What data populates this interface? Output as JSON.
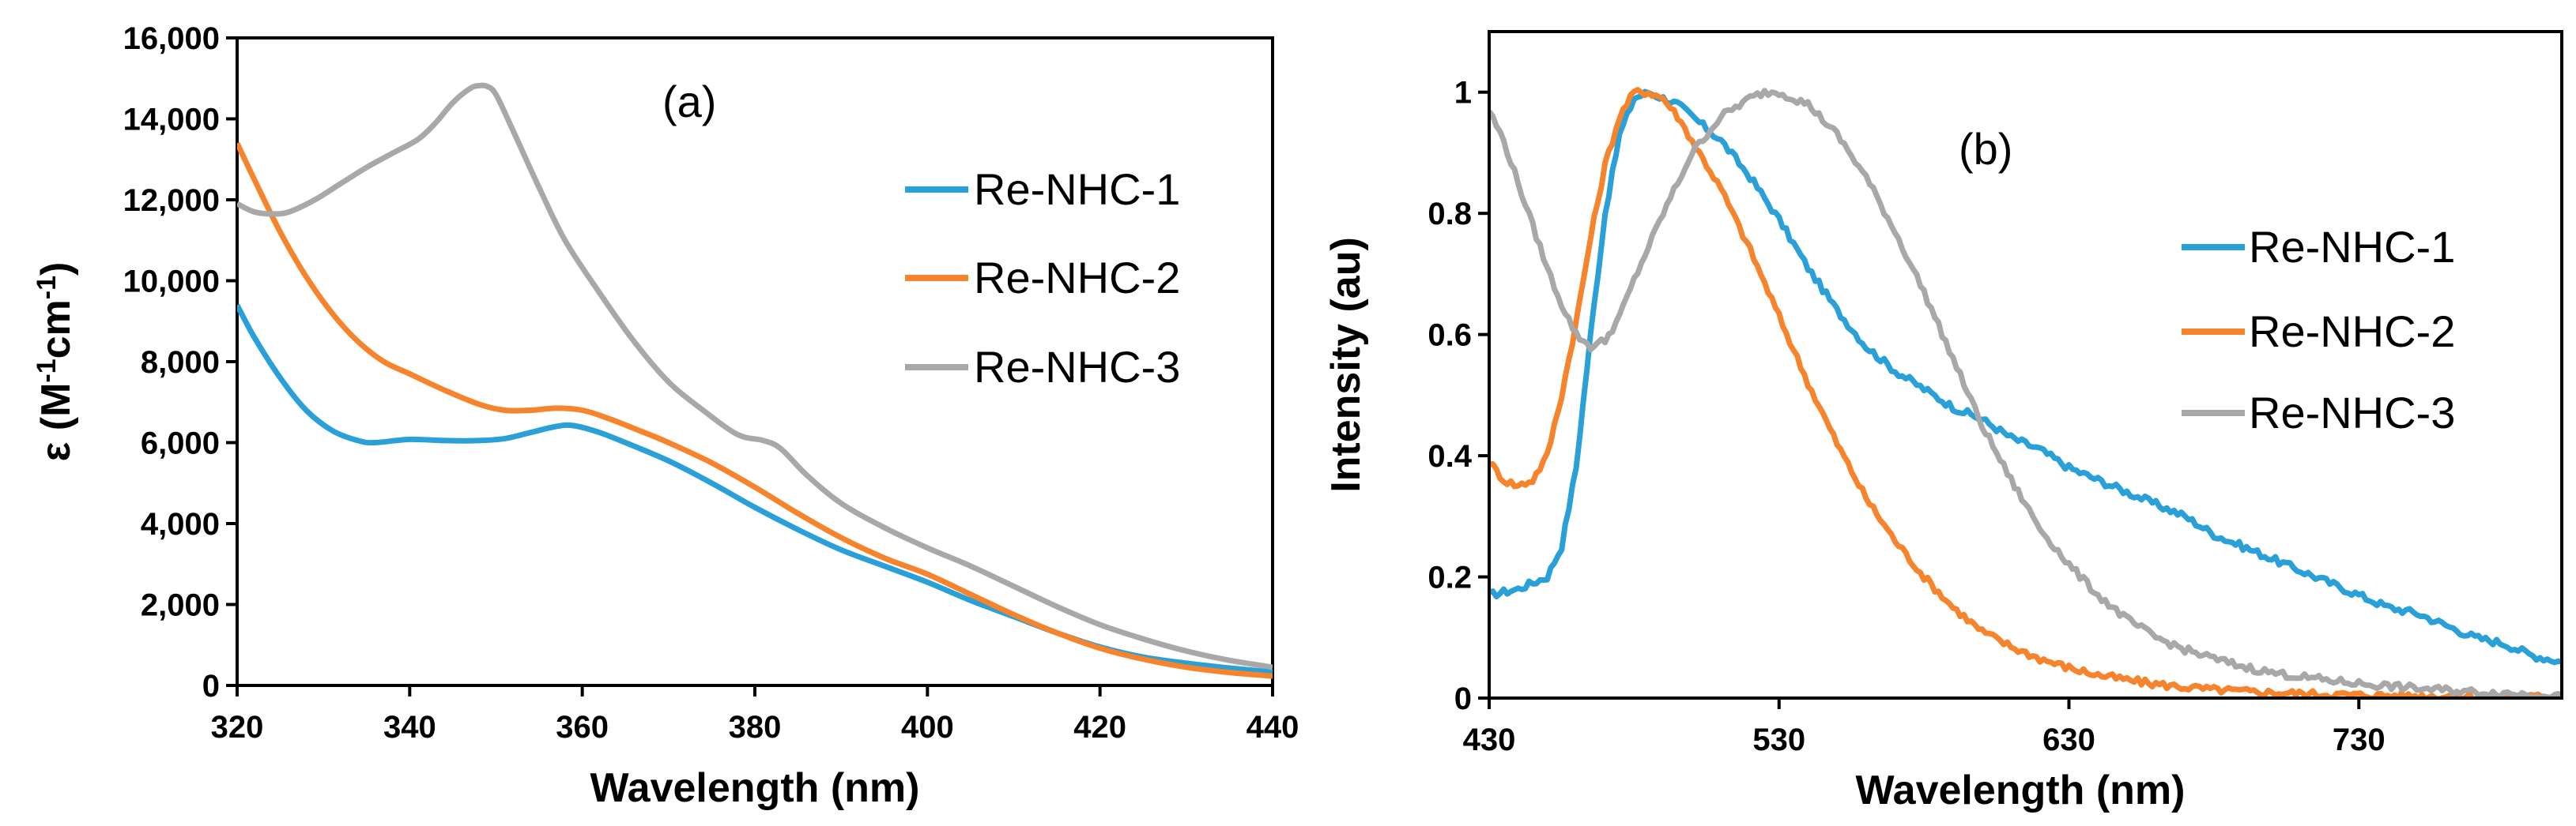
{
  "colors": {
    "Re-NHC-1": "#2aa0d8",
    "Re-NHC-2": "#f5842c",
    "Re-NHC-3": "#a8a8a8"
  },
  "chart_data": [
    {
      "type": "line",
      "panel_label": "(a)",
      "xlabel": "Wavelength (nm)",
      "ylabel": {
        "symbol": "ε (M",
        "sup1": "-1",
        "mid": "cm",
        "sup2": "-1",
        "close": ")"
      },
      "xlim": [
        320,
        440
      ],
      "ylim": [
        0,
        16000
      ],
      "x_ticks": [
        320,
        340,
        360,
        380,
        400,
        420,
        440
      ],
      "x_tick_labels": [
        "320",
        "340",
        "360",
        "380",
        "400",
        "420",
        "440"
      ],
      "y_ticks": [
        0,
        2000,
        4000,
        6000,
        8000,
        10000,
        12000,
        14000,
        16000
      ],
      "y_tick_labels": [
        "0",
        "2,000",
        "4,000",
        "6,000",
        "8,000",
        "10,000",
        "12,000",
        "14,000",
        "16,000"
      ],
      "legend": [
        "Re-NHC-1",
        "Re-NHC-2",
        "Re-NHC-3"
      ],
      "series": [
        {
          "name": "Re-NHC-1",
          "x": [
            320,
            322,
            325,
            328,
            331,
            334,
            336,
            340,
            344,
            348,
            351,
            354,
            357,
            359,
            362,
            365,
            370,
            375,
            380,
            385,
            390,
            395,
            400,
            405,
            410,
            415,
            420,
            425,
            430,
            435,
            440
          ],
          "y": [
            9400,
            8600,
            7600,
            6800,
            6300,
            6050,
            6000,
            6080,
            6050,
            6050,
            6100,
            6250,
            6400,
            6420,
            6250,
            6000,
            5550,
            5000,
            4400,
            3850,
            3350,
            2950,
            2550,
            2100,
            1700,
            1300,
            950,
            700,
            550,
            430,
            330
          ]
        },
        {
          "name": "Re-NHC-2",
          "x": [
            320,
            322,
            325,
            328,
            331,
            334,
            337,
            340,
            344,
            348,
            351,
            354,
            357,
            360,
            363,
            366,
            370,
            375,
            380,
            385,
            390,
            395,
            400,
            405,
            410,
            415,
            420,
            425,
            430,
            435,
            440
          ],
          "y": [
            13400,
            12500,
            11200,
            10100,
            9200,
            8500,
            8000,
            7700,
            7300,
            6950,
            6800,
            6800,
            6850,
            6800,
            6600,
            6350,
            6000,
            5500,
            4900,
            4250,
            3650,
            3150,
            2750,
            2250,
            1750,
            1300,
            920,
            650,
            450,
            320,
            230
          ]
        },
        {
          "name": "Re-NHC-3",
          "x": [
            320,
            322,
            324,
            326,
            329,
            332,
            335,
            338,
            341,
            343,
            345,
            347,
            348,
            349,
            350,
            352,
            355,
            358,
            362,
            366,
            370,
            374,
            378,
            381,
            383,
            386,
            390,
            395,
            400,
            405,
            410,
            415,
            420,
            425,
            430,
            435,
            440
          ],
          "y": [
            11900,
            11700,
            11650,
            11700,
            12000,
            12400,
            12800,
            13150,
            13500,
            13900,
            14400,
            14750,
            14820,
            14800,
            14600,
            13700,
            12300,
            11000,
            9700,
            8500,
            7500,
            6800,
            6200,
            6050,
            5850,
            5200,
            4500,
            3900,
            3400,
            2950,
            2450,
            1950,
            1500,
            1150,
            850,
            620,
            450
          ]
        }
      ]
    },
    {
      "type": "line",
      "panel_label": "(b)",
      "xlabel": "Wavelength (nm)",
      "ylabel": "Intensity (au)",
      "xlim": [
        430,
        800
      ],
      "ylim": [
        0,
        1.1
      ],
      "x_ticks": [
        430,
        530,
        630,
        730
      ],
      "x_tick_labels": [
        "430",
        "530",
        "630",
        "730"
      ],
      "y_ticks": [
        0,
        0.2,
        0.4,
        0.6,
        0.8,
        1
      ],
      "y_tick_labels": [
        "0",
        "0.2",
        "0.4",
        "0.6",
        "0.8",
        "1"
      ],
      "legend": [
        "Re-NHC-1",
        "Re-NHC-2",
        "Re-NHC-3"
      ],
      "series": [
        {
          "name": "Re-NHC-1",
          "x": [
            430,
            440,
            450,
            455,
            460,
            465,
            470,
            475,
            480,
            485,
            490,
            495,
            500,
            510,
            520,
            530,
            540,
            550,
            560,
            570,
            580,
            590,
            600,
            610,
            620,
            630,
            640,
            650,
            660,
            670,
            680,
            690,
            700,
            710,
            720,
            730,
            740,
            750,
            760,
            770,
            780,
            790,
            800
          ],
          "y": [
            0.17,
            0.18,
            0.2,
            0.25,
            0.38,
            0.6,
            0.8,
            0.93,
            0.99,
            1.0,
            0.99,
            0.98,
            0.96,
            0.92,
            0.86,
            0.79,
            0.71,
            0.64,
            0.58,
            0.54,
            0.51,
            0.48,
            0.46,
            0.43,
            0.41,
            0.38,
            0.36,
            0.34,
            0.32,
            0.3,
            0.27,
            0.25,
            0.23,
            0.21,
            0.19,
            0.17,
            0.15,
            0.14,
            0.12,
            0.1,
            0.09,
            0.07,
            0.06
          ]
        },
        {
          "name": "Re-NHC-2",
          "x": [
            430,
            435,
            440,
            445,
            450,
            455,
            460,
            465,
            470,
            475,
            480,
            485,
            490,
            495,
            500,
            505,
            510,
            520,
            530,
            540,
            550,
            560,
            570,
            580,
            590,
            600,
            610,
            620,
            630,
            640,
            650,
            660,
            670,
            680,
            690,
            700,
            720,
            740,
            760,
            780,
            800
          ],
          "y": [
            0.39,
            0.36,
            0.35,
            0.36,
            0.4,
            0.5,
            0.62,
            0.76,
            0.88,
            0.96,
            1.0,
            1.0,
            0.99,
            0.96,
            0.92,
            0.88,
            0.84,
            0.74,
            0.63,
            0.52,
            0.42,
            0.33,
            0.26,
            0.2,
            0.15,
            0.11,
            0.085,
            0.065,
            0.05,
            0.038,
            0.03,
            0.023,
            0.018,
            0.014,
            0.011,
            0.009,
            0.006,
            0.004,
            0.003,
            0.002,
            0.002
          ]
        },
        {
          "name": "Re-NHC-3",
          "x": [
            430,
            435,
            440,
            445,
            450,
            455,
            460,
            465,
            470,
            475,
            480,
            490,
            500,
            510,
            520,
            525,
            530,
            535,
            540,
            550,
            560,
            570,
            580,
            590,
            600,
            610,
            620,
            630,
            640,
            650,
            660,
            670,
            680,
            690,
            700,
            710,
            720,
            730,
            740,
            750,
            760,
            770,
            780,
            790,
            800
          ],
          "y": [
            0.97,
            0.92,
            0.85,
            0.78,
            0.71,
            0.65,
            0.6,
            0.58,
            0.59,
            0.63,
            0.69,
            0.8,
            0.9,
            0.96,
            0.99,
            1.0,
            1.0,
            0.99,
            0.98,
            0.93,
            0.86,
            0.77,
            0.67,
            0.56,
            0.45,
            0.36,
            0.28,
            0.22,
            0.17,
            0.13,
            0.1,
            0.08,
            0.065,
            0.052,
            0.042,
            0.035,
            0.029,
            0.024,
            0.02,
            0.016,
            0.013,
            0.01,
            0.008,
            0.006,
            0.005
          ]
        }
      ]
    }
  ]
}
